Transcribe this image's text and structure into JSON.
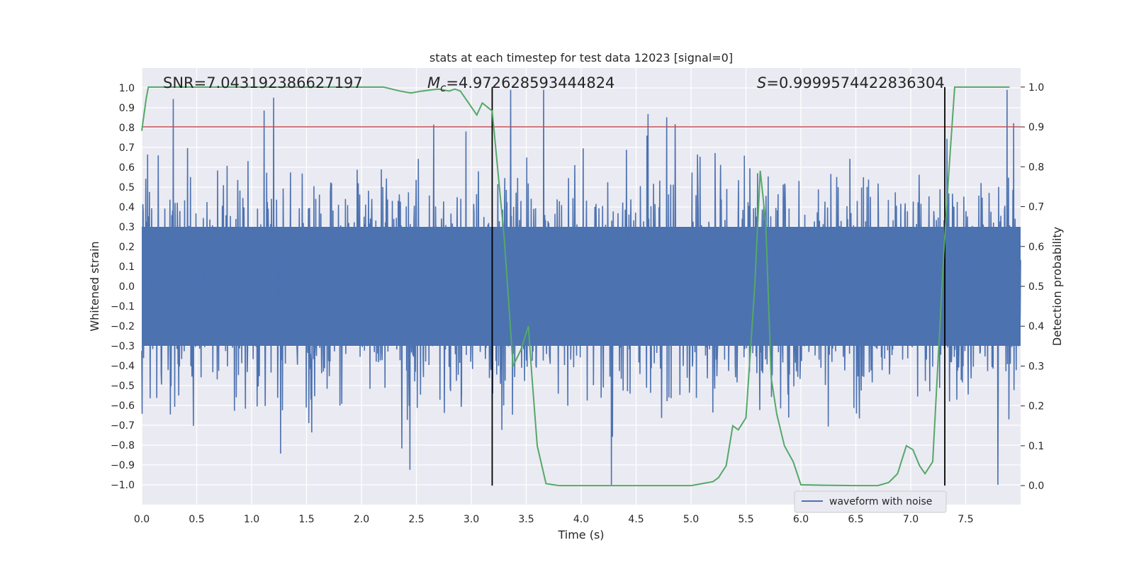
{
  "chart_data": {
    "type": "line",
    "title": "stats at each timestep for test data 12023 [signal=0]",
    "xlabel": "Time (s)",
    "ylabel": "Whitened strain",
    "y2label": "Detection probability",
    "xlim": [
      0.0,
      8.0
    ],
    "ylim": [
      -1.1,
      1.1
    ],
    "y2lim": [
      -0.0477,
      1.0477
    ],
    "x_ticks": [
      0.0,
      0.5,
      1.0,
      1.5,
      2.0,
      2.5,
      3.0,
      3.5,
      4.0,
      4.5,
      5.0,
      5.5,
      6.0,
      6.5,
      7.0,
      7.5
    ],
    "x_tick_labels": [
      "0.0",
      "0.5",
      "1.0",
      "1.5",
      "2.0",
      "2.5",
      "3.0",
      "3.5",
      "4.0",
      "4.5",
      "5.0",
      "5.5",
      "6.0",
      "6.5",
      "7.0",
      "7.5"
    ],
    "y_ticks": [
      -1.0,
      -0.9,
      -0.8,
      -0.7,
      -0.6,
      -0.5,
      -0.4,
      -0.3,
      -0.2,
      -0.1,
      0.0,
      0.1,
      0.2,
      0.3,
      0.4,
      0.5,
      0.6,
      0.7,
      0.8,
      0.9,
      1.0
    ],
    "y_tick_labels": [
      "−1.0",
      "−0.9",
      "−0.8",
      "−0.7",
      "−0.6",
      "−0.5",
      "−0.4",
      "−0.3",
      "−0.2",
      "−0.1",
      "0.0",
      "0.1",
      "0.2",
      "0.3",
      "0.4",
      "0.5",
      "0.6",
      "0.7",
      "0.8",
      "0.9",
      "1.0"
    ],
    "y2_ticks": [
      0.0,
      0.1,
      0.2,
      0.3,
      0.4,
      0.5,
      0.6,
      0.7,
      0.8,
      0.9,
      1.0
    ],
    "y2_tick_labels": [
      "0.0",
      "0.1",
      "0.2",
      "0.3",
      "0.4",
      "0.5",
      "0.6",
      "0.7",
      "0.8",
      "0.9",
      "1.0"
    ],
    "annotations": {
      "snr": "SNR=7.043192386627197",
      "mc_symbol": "M",
      "mc_sub": "c",
      "mc_value": "=4.972628593444824",
      "s_symbol": "S",
      "s_value": "=0.9999574422836304"
    },
    "legend": {
      "entry": "waveform with noise",
      "placement": "lower-right"
    },
    "threshold": {
      "axis": "y2",
      "value": 0.9,
      "color": "#c44e52"
    },
    "vlines": [
      3.19,
      7.31
    ],
    "waveform": {
      "name": "waveform with noise",
      "color": "#4c72b0",
      "x_range": [
        0.0,
        8.0
      ],
      "typical_envelope": 0.55,
      "min": -1.0,
      "max": 0.99
    },
    "series": [
      {
        "name": "",
        "axis": "y2",
        "color": "#55a868",
        "x": [
          0.0,
          0.04,
          0.06,
          0.1,
          0.5,
          1.0,
          1.5,
          2.0,
          2.2,
          2.35,
          2.45,
          2.55,
          2.7,
          2.8,
          2.85,
          2.9,
          2.95,
          3.0,
          3.05,
          3.1,
          3.19,
          3.3,
          3.38,
          3.45,
          3.52,
          3.55,
          3.6,
          3.68,
          3.8,
          4.0,
          4.5,
          5.0,
          5.1,
          5.2,
          5.25,
          5.32,
          5.38,
          5.43,
          5.5,
          5.58,
          5.63,
          5.68,
          5.73,
          5.78,
          5.85,
          5.93,
          6.0,
          6.2,
          6.5,
          6.7,
          6.8,
          6.88,
          6.96,
          7.02,
          7.08,
          7.13,
          7.2,
          7.3,
          7.35,
          7.4,
          7.5,
          7.6,
          7.9
        ],
        "y": [
          0.89,
          0.97,
          1.0,
          1.0,
          1.0,
          1.0,
          1.0,
          1.0,
          1.0,
          0.99,
          0.985,
          0.99,
          0.995,
          0.99,
          0.995,
          0.99,
          0.97,
          0.95,
          0.93,
          0.96,
          0.94,
          0.62,
          0.3,
          0.34,
          0.4,
          0.28,
          0.1,
          0.005,
          0.0,
          0.0,
          0.0,
          0.0,
          0.005,
          0.01,
          0.02,
          0.05,
          0.15,
          0.14,
          0.17,
          0.5,
          0.79,
          0.66,
          0.27,
          0.18,
          0.1,
          0.06,
          0.002,
          0.001,
          0.0,
          0.0,
          0.008,
          0.03,
          0.1,
          0.09,
          0.05,
          0.03,
          0.06,
          0.58,
          0.8,
          1.0,
          1.0,
          1.0,
          1.0
        ]
      }
    ]
  }
}
